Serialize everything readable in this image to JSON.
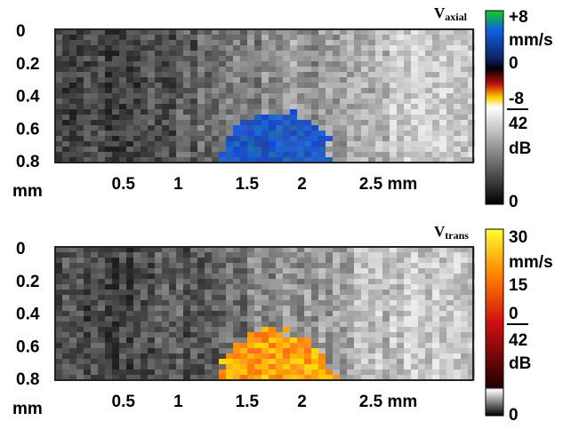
{
  "chart_data": [
    {
      "type": "image",
      "xlim": [
        0,
        3.35
      ],
      "ylim": [
        0,
        0.8
      ],
      "xticks": [
        0.5,
        1,
        1.5,
        2,
        {
          "value": 2.5,
          "label": "2.5 mm"
        }
      ],
      "yticks": [
        0,
        0.2,
        0.4,
        0.6,
        0.8
      ],
      "ylabel": "mm",
      "colorbar": {
        "title": "V",
        "subscript": "axial",
        "labels": [
          "+8",
          "mm/s",
          "0",
          "-8",
          "42",
          "dB",
          "0"
        ]
      }
    },
    {
      "type": "image",
      "xlim": [
        0,
        3.35
      ],
      "ylim": [
        0,
        0.8
      ],
      "xticks": [
        0.5,
        1,
        1.5,
        2,
        {
          "value": 2.5,
          "label": "2.5 mm"
        }
      ],
      "yticks": [
        0,
        0.2,
        0.4,
        0.6,
        0.8
      ],
      "ylabel": "mm",
      "colorbar": {
        "title": "V",
        "subscript": "trans",
        "labels": [
          "30",
          "mm/s",
          "15",
          "0",
          "42",
          "dB",
          "0"
        ]
      }
    }
  ]
}
